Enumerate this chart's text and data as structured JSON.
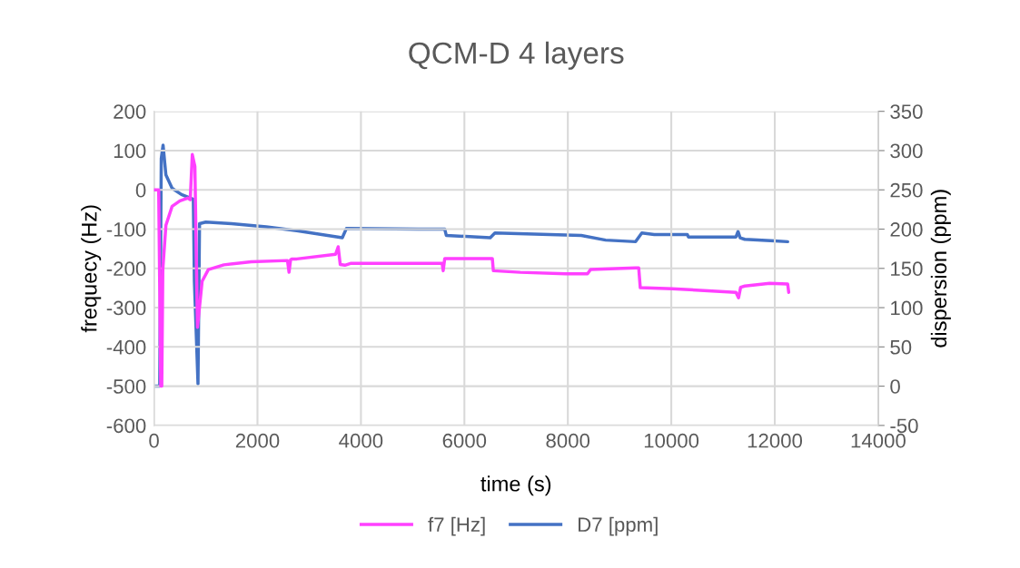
{
  "chart_data": {
    "type": "line",
    "title": "QCM-D 4 layers",
    "xlabel": "time (s)",
    "ylabel": "frequecy (Hz)",
    "y2label": "dispersion (ppm)",
    "xlim": [
      0,
      14000
    ],
    "xticks": [
      0,
      2000,
      4000,
      6000,
      8000,
      10000,
      12000,
      14000
    ],
    "ylim": [
      -600,
      200
    ],
    "yticks": [
      -600,
      -500,
      -400,
      -300,
      -200,
      -100,
      0,
      100,
      200
    ],
    "y2lim": [
      -50,
      350
    ],
    "y2ticks": [
      -50,
      0,
      50,
      100,
      150,
      200,
      250,
      300,
      350
    ],
    "grid": true,
    "legend": "bottom",
    "marker": "none",
    "line_style": "solid",
    "series": [
      {
        "name": "f7 [Hz]",
        "color": "#ff40ff",
        "x": [
          0,
          90,
          130,
          150,
          170,
          230,
          350,
          500,
          650,
          700,
          740,
          790,
          840,
          930,
          1050,
          1350,
          1880,
          2580,
          2610,
          2640,
          2670,
          2760,
          3510,
          3560,
          3600,
          3690,
          3810,
          5570,
          5590,
          5620,
          6540,
          6560,
          7080,
          7960,
          8380,
          8440,
          9310,
          9370,
          9400,
          10020,
          11250,
          11300,
          11340,
          11420,
          11900,
          12250,
          12270
        ],
        "values": [
          0,
          0,
          -500,
          -500,
          -203,
          -90,
          -42,
          -28,
          -21,
          -25,
          90,
          60,
          -350,
          -233,
          -203,
          -191,
          -183,
          -180,
          -210,
          -178,
          -176,
          -176,
          -164,
          -145,
          -190,
          -192,
          -187,
          -187,
          -206,
          -175,
          -175,
          -206,
          -210,
          -214,
          -214,
          -203,
          -199,
          -199,
          -249,
          -252,
          -261,
          -275,
          -248,
          -245,
          -238,
          -240,
          -261
        ]
      },
      {
        "name": "D7 [ppm]",
        "color": "#4472c4",
        "axis": "y2",
        "x": [
          0,
          90,
          110,
          140,
          175,
          230,
          350,
          530,
          760,
          780,
          820,
          850,
          880,
          1000,
          1500,
          2170,
          2760,
          3640,
          3720,
          5100,
          5620,
          5650,
          6500,
          6590,
          8260,
          8730,
          9310,
          9430,
          9670,
          10310,
          10330,
          11250,
          11290,
          11330,
          11420,
          12000,
          12250
        ],
        "values": [
          0,
          0,
          0,
          290,
          307,
          269,
          252,
          244,
          238,
          134,
          60,
          3,
          207,
          209,
          207,
          203,
          198,
          189,
          201,
          200,
          200,
          192,
          189,
          195,
          192,
          186,
          184,
          195,
          193,
          193,
          190,
          190,
          197,
          189,
          187,
          185,
          184
        ]
      }
    ]
  }
}
